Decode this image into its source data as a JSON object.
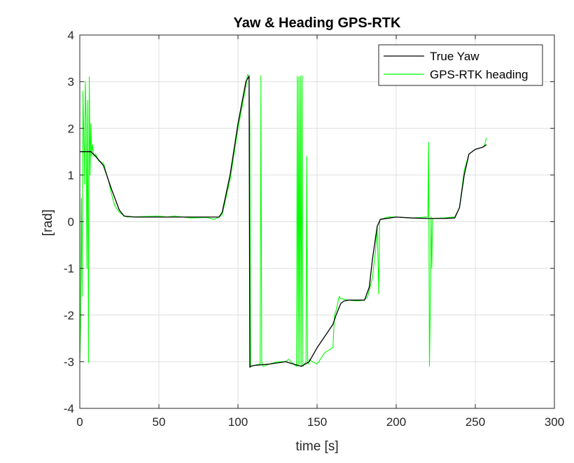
{
  "chart_data": {
    "type": "line",
    "title": "Yaw & Heading GPS-RTK",
    "xlabel": "time [s]",
    "ylabel": "[rad]",
    "xlim": [
      0,
      300
    ],
    "ylim": [
      -4,
      4
    ],
    "xticks": [
      0,
      50,
      100,
      150,
      200,
      250,
      300
    ],
    "yticks": [
      -4,
      -3,
      -2,
      -1,
      0,
      1,
      2,
      3,
      4
    ],
    "xtick_labels": [
      "0",
      "50",
      "100",
      "150",
      "200",
      "250",
      "300"
    ],
    "ytick_labels": [
      "-4",
      "-3",
      "-2",
      "-1",
      "0",
      "1",
      "2",
      "3",
      "4"
    ],
    "grid": true,
    "legend_position": "top-right",
    "series": [
      {
        "name": "True Yaw",
        "color": "#000000",
        "x": [
          0,
          7,
          10,
          15,
          20,
          25,
          28,
          35,
          50,
          60,
          70,
          80,
          88,
          90,
          95,
          100,
          105,
          107,
          107.5,
          108,
          110,
          120,
          130,
          140,
          145,
          150,
          155,
          160,
          162,
          165,
          167,
          170,
          180,
          183,
          185,
          188,
          190,
          200,
          210,
          220,
          230,
          237,
          240,
          243,
          246,
          250,
          255,
          257
        ],
        "y": [
          1.5,
          1.5,
          1.4,
          1.2,
          0.7,
          0.25,
          0.12,
          0.1,
          0.1,
          0.1,
          0.1,
          0.1,
          0.1,
          0.2,
          1.0,
          2.1,
          3.0,
          3.12,
          -3.12,
          -3.1,
          -3.08,
          -3.05,
          -3.0,
          -3.1,
          -3.0,
          -2.7,
          -2.45,
          -2.2,
          -2.0,
          -1.75,
          -1.7,
          -1.68,
          -1.68,
          -1.4,
          -0.8,
          -0.1,
          0.05,
          0.1,
          0.08,
          0.07,
          0.07,
          0.08,
          0.3,
          1.0,
          1.45,
          1.55,
          1.6,
          1.65
        ]
      },
      {
        "name": "GPS-RTK heading",
        "color": "#00ff00",
        "x": [
          0,
          0.5,
          1,
          1.5,
          2,
          2.5,
          3,
          3.5,
          4,
          4.5,
          5,
          5.5,
          6,
          6.5,
          7,
          7.5,
          8,
          9,
          10,
          12,
          15,
          18,
          20,
          22,
          25,
          28,
          30,
          40,
          50,
          55,
          60,
          70,
          80,
          85,
          88,
          90,
          95,
          100,
          105,
          106,
          107,
          107.5,
          108,
          110,
          114,
          114.5,
          115,
          115.5,
          116,
          120,
          125,
          130,
          132,
          135,
          137,
          137.5,
          138,
          138.5,
          139,
          139.5,
          140,
          140.5,
          141,
          142,
          143,
          143.5,
          144,
          144.5,
          145,
          147,
          150,
          152,
          155,
          160,
          161,
          162,
          164,
          165,
          170,
          175,
          180,
          182,
          185,
          187,
          188,
          189,
          189.5,
          190,
          195,
          200,
          210,
          220,
          220.5,
          221,
          221.5,
          222,
          222.5,
          223,
          230,
          237,
          240,
          243,
          246,
          250,
          255,
          256,
          257
        ],
        "y": [
          -3.0,
          -2.2,
          0.5,
          -1.6,
          2.8,
          1.9,
          0.8,
          3.0,
          2.2,
          -1.0,
          2.6,
          -3.02,
          3.1,
          1.0,
          2.1,
          1.4,
          1.65,
          1.4,
          1.45,
          1.3,
          1.25,
          0.9,
          0.6,
          0.35,
          0.2,
          0.13,
          0.1,
          0.11,
          0.12,
          0.1,
          0.12,
          0.08,
          0.09,
          0.05,
          0.1,
          0.15,
          0.9,
          2.0,
          2.9,
          3.15,
          3.13,
          2.0,
          -3.1,
          -3.08,
          -3.05,
          3.13,
          -3.02,
          -3.08,
          -3.1,
          -3.05,
          -3.0,
          -3.0,
          -2.95,
          -3.05,
          -3.1,
          3.12,
          -3.1,
          3.1,
          -3.05,
          3.12,
          -3.1,
          3.13,
          -3.1,
          -3.05,
          -3.0,
          1.4,
          -3.02,
          -3.05,
          -2.95,
          -3.0,
          -3.05,
          -2.95,
          -2.8,
          -2.7,
          -2.0,
          -1.9,
          -1.6,
          -1.65,
          -1.68,
          -1.7,
          -1.68,
          -1.6,
          -1.2,
          -0.6,
          -0.1,
          -1.55,
          0.0,
          0.05,
          0.1,
          0.1,
          0.08,
          0.1,
          1.7,
          -3.1,
          -2.0,
          0.1,
          -1.0,
          0.07,
          0.08,
          0.1,
          0.3,
          1.1,
          1.45,
          1.55,
          1.6,
          1.65,
          1.8
        ]
      }
    ]
  }
}
